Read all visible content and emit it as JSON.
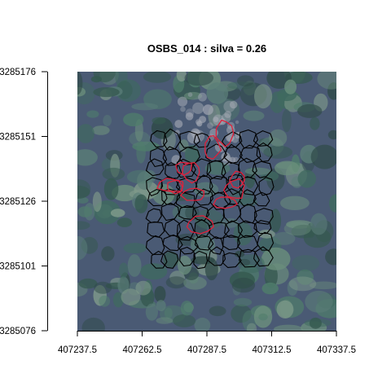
{
  "chart_data": {
    "type": "scatter",
    "title": "OSBS_014 : silva = 0.26",
    "xlabel": "",
    "ylabel": "",
    "xlim": [
      407237.5,
      407337.5
    ],
    "ylim": [
      3285076,
      3285176
    ],
    "x_ticks": [
      "407237.5",
      "407262.5",
      "407287.5",
      "407312.5",
      "407337.5"
    ],
    "y_ticks": [
      "3285076",
      "3285101",
      "3285126",
      "3285151",
      "3285176"
    ],
    "grid": false,
    "background": "aerial RGB imagery of forest canopy",
    "series": [
      {
        "color": "#000000",
        "polygon_count": 70,
        "extent": {
          "x": [
            407265.0,
            407312.5
          ],
          "y": [
            3285101.0,
            3285152.5
          ]
        }
      },
      {
        "color": "#e0203a",
        "polygon_count": 11,
        "extent": {
          "x": [
            407270.0,
            407303.0
          ],
          "y": [
            3285103.0,
            3285154.0
          ]
        }
      }
    ]
  },
  "colors": {
    "predicted_crowns": "#000000",
    "reference_crowns": "#e0203a",
    "image_base": "#4a5a74",
    "canopy": "#3d6b62"
  }
}
